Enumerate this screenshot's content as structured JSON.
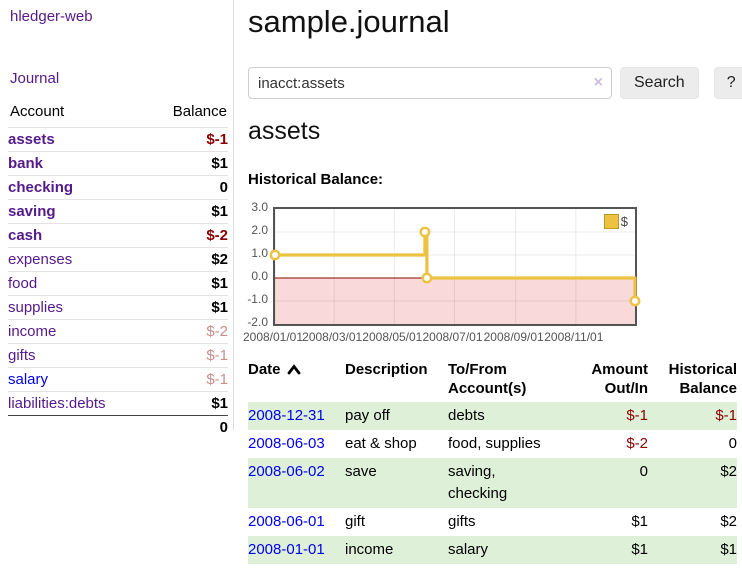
{
  "app": {
    "title": "hledger-web"
  },
  "sidebar": {
    "journal_link": "Journal",
    "accounts_table": {
      "headers": {
        "account": "Account",
        "balance": "Balance"
      },
      "rows": [
        {
          "name": "assets",
          "balance": "$-1",
          "level": 1,
          "bold": true,
          "negative": true,
          "dim": false
        },
        {
          "name": "bank",
          "balance": "$1",
          "level": 2,
          "bold": true,
          "negative": false,
          "dim": false
        },
        {
          "name": "checking",
          "balance": "0",
          "level": 3,
          "bold": true,
          "negative": false,
          "dim": false
        },
        {
          "name": "saving",
          "balance": "$1",
          "level": 3,
          "bold": true,
          "negative": false,
          "dim": false
        },
        {
          "name": "cash",
          "balance": "$-2",
          "level": 2,
          "bold": true,
          "negative": true,
          "dim": false
        },
        {
          "name": "expenses",
          "balance": "$2",
          "level": 1,
          "bold": false,
          "negative": false,
          "dim": false
        },
        {
          "name": "food",
          "balance": "$1",
          "level": 2,
          "bold": false,
          "negative": false,
          "dim": false
        },
        {
          "name": "supplies",
          "balance": "$1",
          "level": 2,
          "bold": false,
          "negative": false,
          "dim": false
        },
        {
          "name": "income",
          "balance": "$-2",
          "level": 1,
          "bold": false,
          "negative": true,
          "dim": true
        },
        {
          "name": "gifts",
          "balance": "$-1",
          "level": 2,
          "bold": false,
          "negative": true,
          "dim": true
        },
        {
          "name": "salary",
          "balance": "$-1",
          "level": 2,
          "bold": false,
          "negative": true,
          "dim": true,
          "link_style": "blue"
        },
        {
          "name": "liabilities:debts",
          "balance": "$1",
          "level": 1,
          "bold": false,
          "negative": false,
          "dim": false
        }
      ],
      "total": "0"
    }
  },
  "main": {
    "title": "sample.journal",
    "search": {
      "value": "inacct:assets",
      "clear_icon": "×",
      "search_button": "Search",
      "help_button": "?"
    },
    "account_heading": "assets",
    "chart_title": "Historical Balance:"
  },
  "chart_data": {
    "type": "line",
    "step": true,
    "title": "Historical Balance",
    "series": [
      {
        "name": "$",
        "color": "#edc240",
        "points": [
          [
            "2008-01-01",
            1
          ],
          [
            "2008-06-01",
            2
          ],
          [
            "2008-06-03",
            0
          ],
          [
            "2008-12-31",
            -1
          ]
        ]
      }
    ],
    "xlim": [
      "2008-01-01",
      "2008-12-31"
    ],
    "ylim": [
      -2.0,
      3.0
    ],
    "y_ticks": [
      "3.0",
      "2.0",
      "1.0",
      "0.0",
      "-1.0",
      "-2.0"
    ],
    "x_tick_dates": [
      "2008-01-01",
      "2008-03-01",
      "2008-05-01",
      "2008-07-01",
      "2008-09-01",
      "2008-11-01"
    ],
    "x_tick_labels": [
      "2008/01/01",
      "2008/03/01",
      "2008/05/01",
      "2008/07/01",
      "2008/09/01",
      "2008/11/01"
    ],
    "legend": "$",
    "legend_position": "top-right",
    "grid": true,
    "negative_region_color": "#f9d9d9",
    "zero_line_color": "#8b0000"
  },
  "register": {
    "headers": {
      "date": "Date",
      "description": "Description",
      "accounts": "To/From Account(s)",
      "amount": "Amount Out/In",
      "balance": "Historical Balance"
    },
    "rows": [
      {
        "date": "2008-12-31",
        "description": "pay off",
        "accounts": "debts",
        "amount": "$-1",
        "balance": "$-1",
        "amount_negative": true,
        "balance_negative": true
      },
      {
        "date": "2008-06-03",
        "description": "eat & shop",
        "accounts": "food, supplies",
        "amount": "$-2",
        "balance": "0",
        "amount_negative": true,
        "balance_negative": false
      },
      {
        "date": "2008-06-02",
        "description": "save",
        "accounts": "saving, checking",
        "amount": "0",
        "balance": "$2",
        "amount_negative": false,
        "balance_negative": false
      },
      {
        "date": "2008-06-01",
        "description": "gift",
        "accounts": "gifts",
        "amount": "$1",
        "balance": "$2",
        "amount_negative": false,
        "balance_negative": false
      },
      {
        "date": "2008-01-01",
        "description": "income",
        "accounts": "salary",
        "amount": "$1",
        "balance": "$1",
        "amount_negative": false,
        "balance_negative": false
      }
    ]
  },
  "colors": {
    "accent_purple": "#551a8b",
    "link_blue": "#0000ee",
    "negative_red": "#8b0000",
    "dim_negative_red": "#c98d8d",
    "row_green": "#dff0d8",
    "chart_gold": "#edc240",
    "plot_border": "#545454"
  }
}
